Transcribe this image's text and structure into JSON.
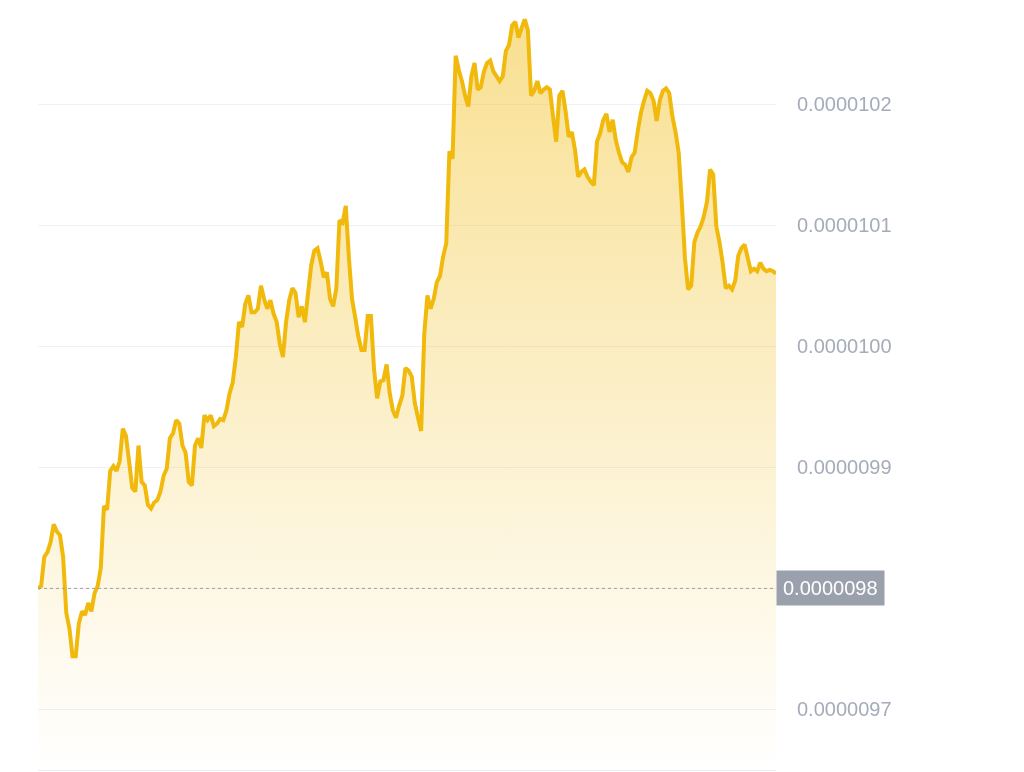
{
  "chart_data": {
    "type": "area",
    "categories": [
      null,
      null,
      null,
      null,
      null,
      null,
      null,
      null,
      null,
      null,
      null,
      null,
      null,
      null,
      null,
      null,
      null,
      null,
      null,
      null,
      null,
      null,
      null,
      null,
      null,
      null,
      null,
      null,
      null,
      null,
      null,
      null,
      null,
      null,
      null,
      null,
      null,
      null,
      null,
      null,
      null,
      null,
      null,
      null,
      null,
      null,
      null,
      null,
      null,
      null,
      null,
      null,
      null,
      null,
      null,
      null,
      null,
      null,
      null,
      null,
      null,
      null,
      null,
      null,
      null,
      null,
      null,
      null,
      null,
      null,
      null,
      null,
      null,
      null,
      null,
      null,
      null,
      null,
      null,
      null,
      null,
      null,
      null,
      null,
      null,
      null,
      null,
      null,
      null,
      null,
      null,
      null,
      null,
      null,
      null,
      null,
      null,
      null,
      null,
      null,
      null,
      null,
      null,
      null,
      null,
      null,
      null,
      null,
      null,
      null,
      null,
      null,
      null,
      null,
      null,
      null,
      null,
      null,
      null,
      null,
      null,
      null,
      null,
      null,
      null,
      null,
      null,
      null,
      null,
      null,
      null,
      null,
      null,
      null,
      null,
      null,
      null,
      null,
      null,
      null,
      null,
      null,
      null,
      null,
      null,
      null,
      null,
      null,
      null,
      null,
      null,
      null,
      null,
      null,
      null,
      null,
      null,
      null,
      null,
      null,
      null,
      null,
      null,
      null,
      null,
      null,
      null,
      null,
      null,
      null,
      null,
      null,
      null,
      null,
      null,
      null,
      null,
      null,
      null,
      null,
      null,
      null,
      null,
      null,
      null,
      null,
      null,
      null,
      null,
      null,
      null,
      null,
      null,
      null,
      null,
      null,
      null,
      null,
      null,
      null,
      null,
      null,
      null,
      null,
      null,
      null,
      null,
      null,
      null,
      null,
      null,
      null,
      null,
      null,
      null,
      null,
      null,
      null,
      null,
      null,
      null,
      null,
      null,
      null,
      null,
      null,
      null,
      null,
      null,
      null,
      null,
      null,
      null,
      null,
      null,
      null
    ],
    "series": [
      {
        "color": "#f0b90b",
        "values": [
          9.8e-06,
          9.802e-06,
          9.826e-06,
          9.83e-06,
          9.838e-06,
          9.853e-06,
          9.847e-06,
          9.844e-06,
          9.826e-06,
          9.78e-06,
          9.767e-06,
          9.744e-06,
          9.744e-06,
          9.771e-06,
          9.781e-06,
          9.778e-06,
          9.788e-06,
          9.781e-06,
          9.796e-06,
          9.802e-06,
          9.817e-06,
          9.868e-06,
          9.865e-06,
          9.897e-06,
          9.901e-06,
          9.897e-06,
          9.905e-06,
          9.932e-06,
          9.926e-06,
          9.905e-06,
          9.883e-06,
          9.88e-06,
          9.918e-06,
          9.888e-06,
          9.885e-06,
          9.869e-06,
          9.866e-06,
          9.871e-06,
          9.873e-06,
          9.88e-06,
          9.893e-06,
          9.899e-06,
          9.924e-06,
          9.928e-06,
          9.939e-06,
          9.936e-06,
          9.918e-06,
          9.912e-06,
          9.888e-06,
          9.885e-06,
          9.918e-06,
          9.924e-06,
          9.916e-06,
          9.943e-06,
          9.939e-06,
          9.943e-06,
          9.934e-06,
          9.936e-06,
          9.94e-06,
          9.939e-06,
          9.947e-06,
          9.961e-06,
          9.97e-06,
          9.991e-06,
          1.002e-05,
          1.0016e-05,
          1.0035e-05,
          1.0042e-05,
          1.0028e-05,
          1.0028e-05,
          1.0031e-05,
          1.005e-05,
          1.0039e-05,
          1.0031e-05,
          1.0038e-05,
          1.0027e-05,
          1.002e-05,
          1.0002e-05,
          9.991e-06,
          1.002e-05,
          1.0038e-05,
          1.0048e-05,
          1.0044e-05,
          1.0024e-05,
          1.0033e-05,
          1.002e-05,
          1.0044e-05,
          1.0067e-05,
          1.0079e-05,
          1.0081e-05,
          1.007e-05,
          1.0057e-05,
          1.0061e-05,
          1.0039e-05,
          1.0033e-05,
          1.0048e-05,
          1.0104e-05,
          1.0102e-05,
          1.0116e-05,
          1.0073e-05,
          1.0039e-05,
          1.0024e-05,
          1.0008e-05,
          9.997e-06,
          9.997e-06,
          1.0025e-05,
          1.0025e-05,
          9.981e-06,
          9.957e-06,
          9.971e-06,
          9.972e-06,
          9.985e-06,
          9.961e-06,
          9.947e-06,
          9.941e-06,
          9.951e-06,
          9.959e-06,
          9.982e-06,
          9.98e-06,
          9.975e-06,
          9.953e-06,
          9.941e-06,
          9.93e-06,
          1.001e-05,
          1.0042e-05,
          1.0031e-05,
          1.0039e-05,
          1.0053e-05,
          1.0058e-05,
          1.0074e-05,
          1.0085e-05,
          1.0161e-05,
          1.0155e-05,
          1.024e-05,
          1.0228e-05,
          1.0219e-05,
          1.0207e-05,
          1.0198e-05,
          1.0223e-05,
          1.0234e-05,
          1.0212e-05,
          1.0214e-05,
          1.0227e-05,
          1.0234e-05,
          1.0236e-05,
          1.0227e-05,
          1.0223e-05,
          1.0219e-05,
          1.0223e-05,
          1.0244e-05,
          1.0249e-05,
          1.0265e-05,
          1.0268e-05,
          1.0255e-05,
          1.0263e-05,
          1.027e-05,
          1.0261e-05,
          1.0207e-05,
          1.0211e-05,
          1.0219e-05,
          1.0209e-05,
          1.0212e-05,
          1.0214e-05,
          1.0212e-05,
          1.019e-05,
          1.0169e-05,
          1.0207e-05,
          1.0211e-05,
          1.0194e-05,
          1.0173e-05,
          1.0177e-05,
          1.0162e-05,
          1.014e-05,
          1.0144e-05,
          1.0146e-05,
          1.014e-05,
          1.0136e-05,
          1.0133e-05,
          1.0169e-05,
          1.0176e-05,
          1.0187e-05,
          1.0192e-05,
          1.0177e-05,
          1.0187e-05,
          1.017e-05,
          1.016e-05,
          1.0152e-05,
          1.015e-05,
          1.0144e-05,
          1.0156e-05,
          1.016e-05,
          1.0178e-05,
          1.0193e-05,
          1.0203e-05,
          1.0211e-05,
          1.0209e-05,
          1.0203e-05,
          1.0186e-05,
          1.0203e-05,
          1.0211e-05,
          1.0213e-05,
          1.0209e-05,
          1.019e-05,
          1.0177e-05,
          1.016e-05,
          1.0119e-05,
          1.0073e-05,
          1.0047e-05,
          1.005e-05,
          1.0086e-05,
          1.0094e-05,
          1.0099e-05,
          1.0107e-05,
          1.0119e-05,
          1.0146e-05,
          1.0142e-05,
          1.0099e-05,
          1.0086e-05,
          1.0069e-05,
          1.0048e-05,
          1.005e-05,
          1.0047e-05,
          1.0054e-05,
          1.0075e-05,
          1.0081e-05,
          1.0084e-05,
          1.0073e-05,
          1.0062e-05,
          1.0064e-05,
          1.0062e-05,
          1.0069e-05,
          1.0064e-05,
          1.0062e-05,
          1.0063e-05,
          1.0062e-05,
          1.006e-05
        ]
      }
    ],
    "ylim": [
      9.65e-06,
      1.0286e-05
    ],
    "yticks": [
      {
        "value": 9.7e-06,
        "label": "0.0000097"
      },
      {
        "value": 9.8e-06,
        "label": null
      },
      {
        "value": 9.9e-06,
        "label": "0.0000099"
      },
      {
        "value": 1e-05,
        "label": "0.0000100"
      },
      {
        "value": 1.01e-05,
        "label": "0.0000101"
      },
      {
        "value": 1.02e-05,
        "label": "0.0000102"
      }
    ],
    "ref_lines": [
      {
        "axis": "y",
        "value": 9.8e-06,
        "label": "0.0000098",
        "color": "#9aa0ac",
        "line_style": "dotted"
      }
    ],
    "grid": "y",
    "tick_labels": "y",
    "line_style": "solid",
    "marker": "none"
  }
}
